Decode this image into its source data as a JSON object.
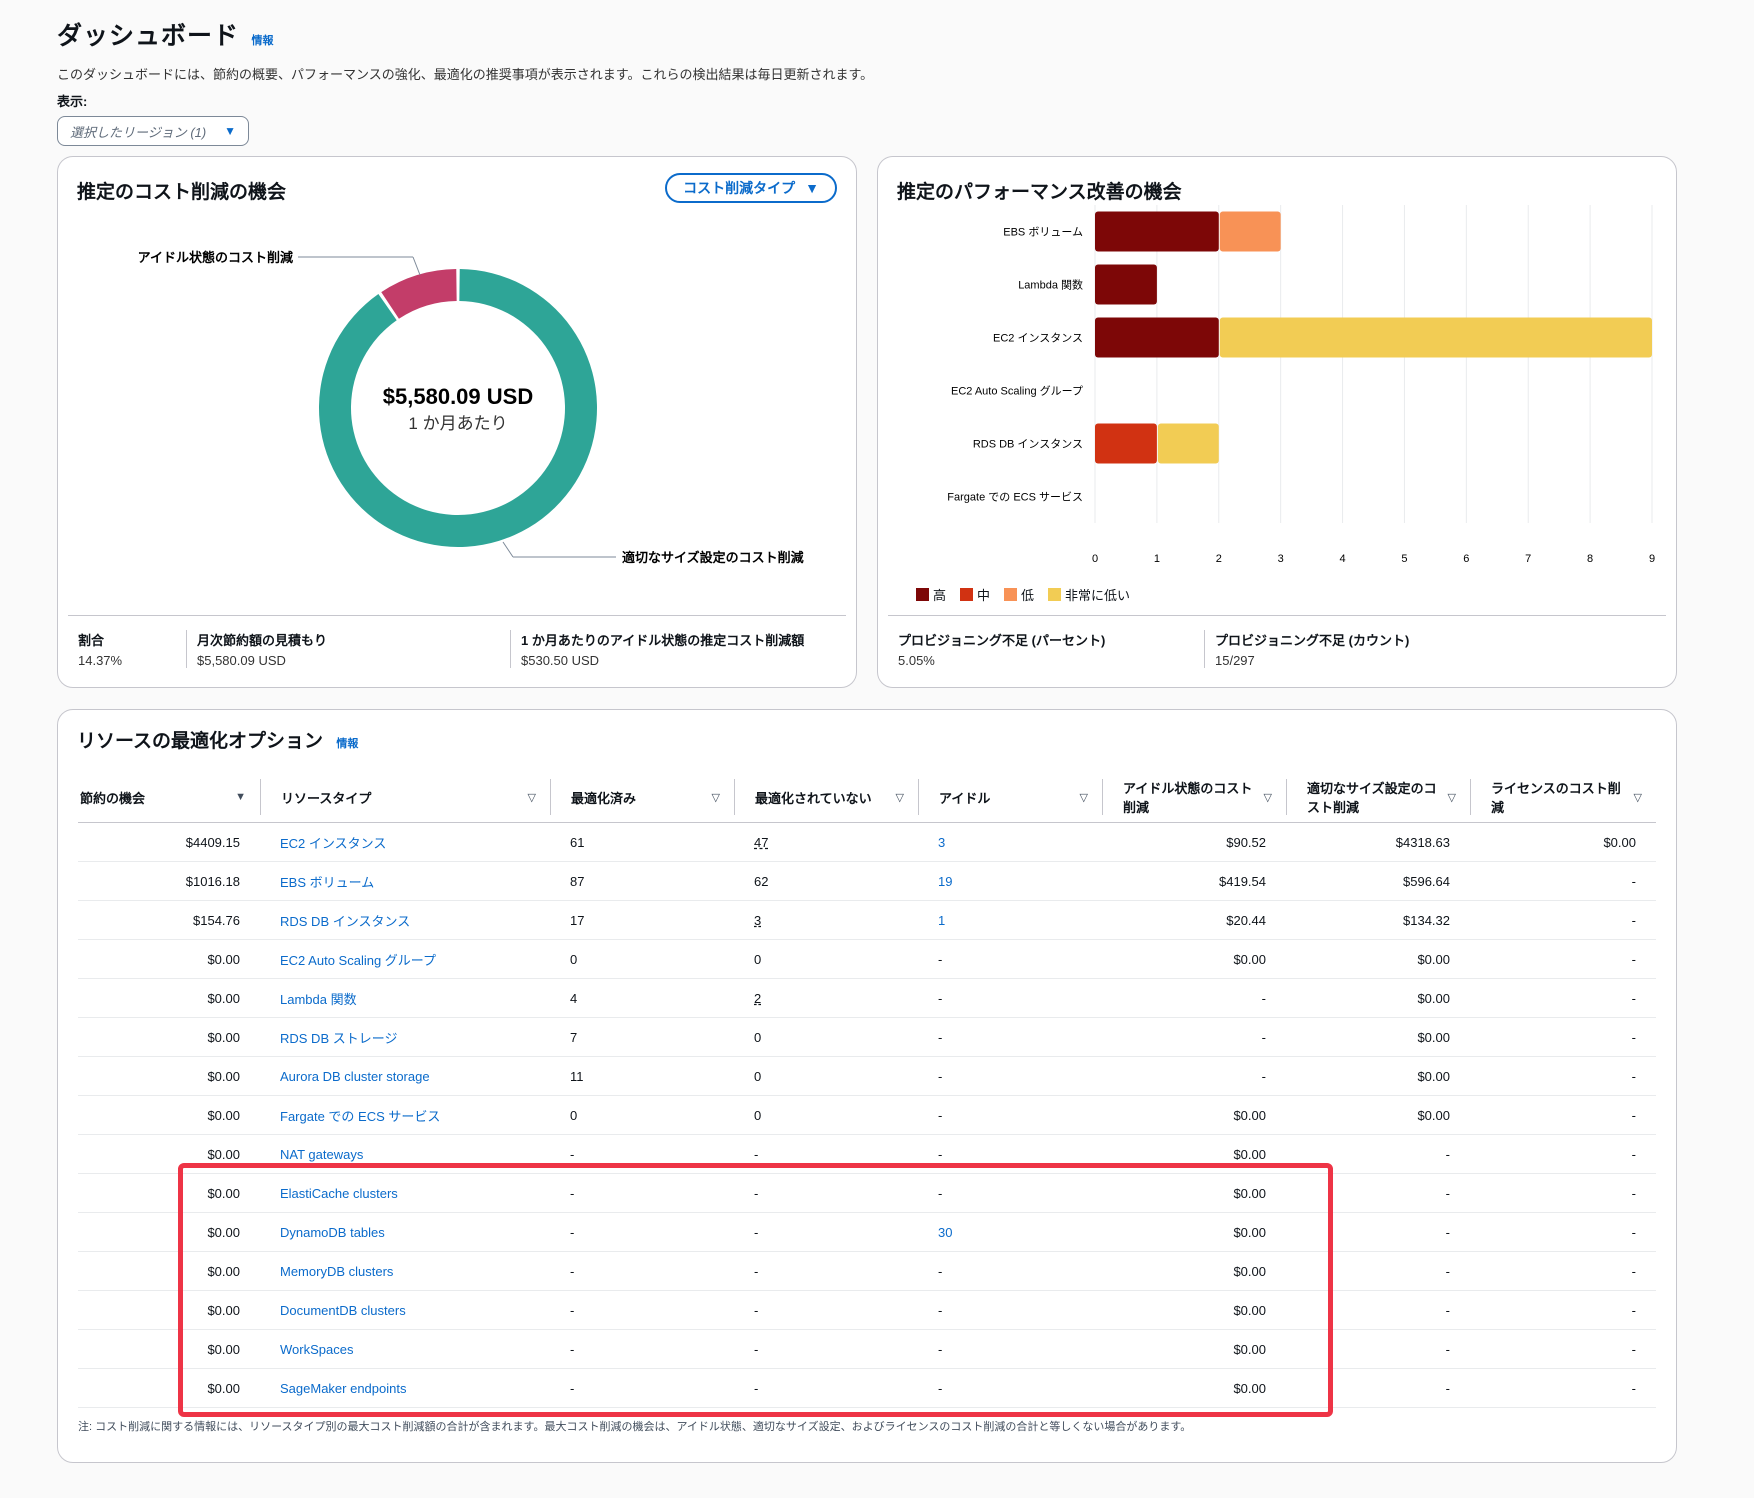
{
  "header": {
    "title": "ダッシュボード",
    "info": "情報",
    "description": "このダッシュボードには、節約の概要、パフォーマンスの強化、最適化の推奨事項が表示されます。これらの検出結果は毎日更新されます。",
    "display_label": "表示:",
    "region_select": "選択したリージョン (1)"
  },
  "cost_card": {
    "title": "推定のコスト削減の機会",
    "type_button": "コスト削減タイプ",
    "center_value": "$5,580.09 USD",
    "center_sub": "1 か月あたり",
    "label_idle": "アイドル状態のコスト削減",
    "label_rightsize": "適切なサイズ設定のコスト削減",
    "colors": {
      "idle": "#c33d69",
      "rightsize": "#2ea597"
    },
    "stats": [
      {
        "k": "割合",
        "v": "14.37%"
      },
      {
        "k": "月次節約額の見積もり",
        "v": "$5,580.09 USD"
      },
      {
        "k": "1 か月あたりのアイドル状態の推定コスト削減額",
        "v": "$530.50 USD"
      }
    ]
  },
  "chart_data": {
    "type": "donut",
    "categories": [
      "アイドル状態のコスト削減",
      "適切なサイズ設定のコスト削減"
    ],
    "values": [
      530.5,
      5049.59
    ]
  },
  "perf_card": {
    "title": "推定のパフォーマンス改善の機会",
    "legend": [
      {
        "name": "高",
        "color": "#7d0707"
      },
      {
        "name": "中",
        "color": "#d13212"
      },
      {
        "name": "低",
        "color": "#f89256"
      },
      {
        "name": "非常に低い",
        "color": "#f2cc54"
      }
    ],
    "x_ticks": [
      "0",
      "1",
      "2",
      "3",
      "4",
      "5",
      "6",
      "7",
      "8",
      "9"
    ],
    "xlim": [
      0,
      9
    ],
    "bars": [
      {
        "label": "EBS ボリューム",
        "values": [
          2,
          0,
          1,
          0
        ]
      },
      {
        "label": "Lambda 関数",
        "values": [
          1,
          0,
          0,
          0
        ]
      },
      {
        "label": "EC2 インスタンス",
        "values": [
          2,
          0,
          0,
          7
        ]
      },
      {
        "label": "EC2 Auto Scaling グループ",
        "values": [
          0,
          0,
          0,
          0
        ]
      },
      {
        "label": "RDS DB インスタンス",
        "values": [
          0,
          1,
          0,
          1
        ]
      },
      {
        "label": "Fargate での ECS サービス",
        "values": [
          0,
          0,
          0,
          0
        ]
      }
    ],
    "stats": [
      {
        "k": "プロビジョニング不足 (パーセント)",
        "v": "5.05%"
      },
      {
        "k": "プロビジョニング不足 (カウント)",
        "v": "15/297"
      }
    ]
  },
  "table_card": {
    "title": "リソースの最適化オプション",
    "info": "情報",
    "columns": [
      "節約の機会",
      "リソースタイプ",
      "最適化済み",
      "最適化されていない",
      "アイドル",
      "アイドル状態のコスト削減",
      "適切なサイズ設定のコスト削減",
      "ライセンスのコスト削減"
    ],
    "rows": [
      [
        "$4409.15",
        "EC2 インスタンス",
        "61",
        "47",
        "3",
        "$90.52",
        "$4318.63",
        "$0.00"
      ],
      [
        "$1016.18",
        "EBS ボリューム",
        "87",
        "62",
        "19",
        "$419.54",
        "$596.64",
        "-"
      ],
      [
        "$154.76",
        "RDS DB インスタンス",
        "17",
        "3",
        "1",
        "$20.44",
        "$134.32",
        "-"
      ],
      [
        "$0.00",
        "EC2 Auto Scaling グループ",
        "0",
        "0",
        "-",
        "$0.00",
        "$0.00",
        "-"
      ],
      [
        "$0.00",
        "Lambda 関数",
        "4",
        "2",
        "-",
        "-",
        "$0.00",
        "-"
      ],
      [
        "$0.00",
        "RDS DB ストレージ",
        "7",
        "0",
        "-",
        "-",
        "$0.00",
        "-"
      ],
      [
        "$0.00",
        "Aurora DB cluster storage",
        "11",
        "0",
        "-",
        "-",
        "$0.00",
        "-"
      ],
      [
        "$0.00",
        "Fargate での ECS サービス",
        "0",
        "0",
        "-",
        "$0.00",
        "$0.00",
        "-"
      ],
      [
        "$0.00",
        "NAT gateways",
        "-",
        "-",
        "-",
        "$0.00",
        "-",
        "-"
      ],
      [
        "$0.00",
        "ElastiCache clusters",
        "-",
        "-",
        "-",
        "$0.00",
        "-",
        "-"
      ],
      [
        "$0.00",
        "DynamoDB tables",
        "-",
        "-",
        "30",
        "$0.00",
        "-",
        "-"
      ],
      [
        "$0.00",
        "MemoryDB clusters",
        "-",
        "-",
        "-",
        "$0.00",
        "-",
        "-"
      ],
      [
        "$0.00",
        "DocumentDB clusters",
        "-",
        "-",
        "-",
        "$0.00",
        "-",
        "-"
      ],
      [
        "$0.00",
        "WorkSpaces",
        "-",
        "-",
        "-",
        "$0.00",
        "-",
        "-"
      ],
      [
        "$0.00",
        "SageMaker endpoints",
        "-",
        "-",
        "-",
        "$0.00",
        "-",
        "-"
      ]
    ],
    "note": "注: コスト削減に関する情報には、リソースタイプ別の最大コスト削減額の合計が含まれます。最大コスト削減の機会は、アイドル状態、適切なサイズ設定、およびライセンスのコスト削減の合計と等しくない場合があります。"
  }
}
